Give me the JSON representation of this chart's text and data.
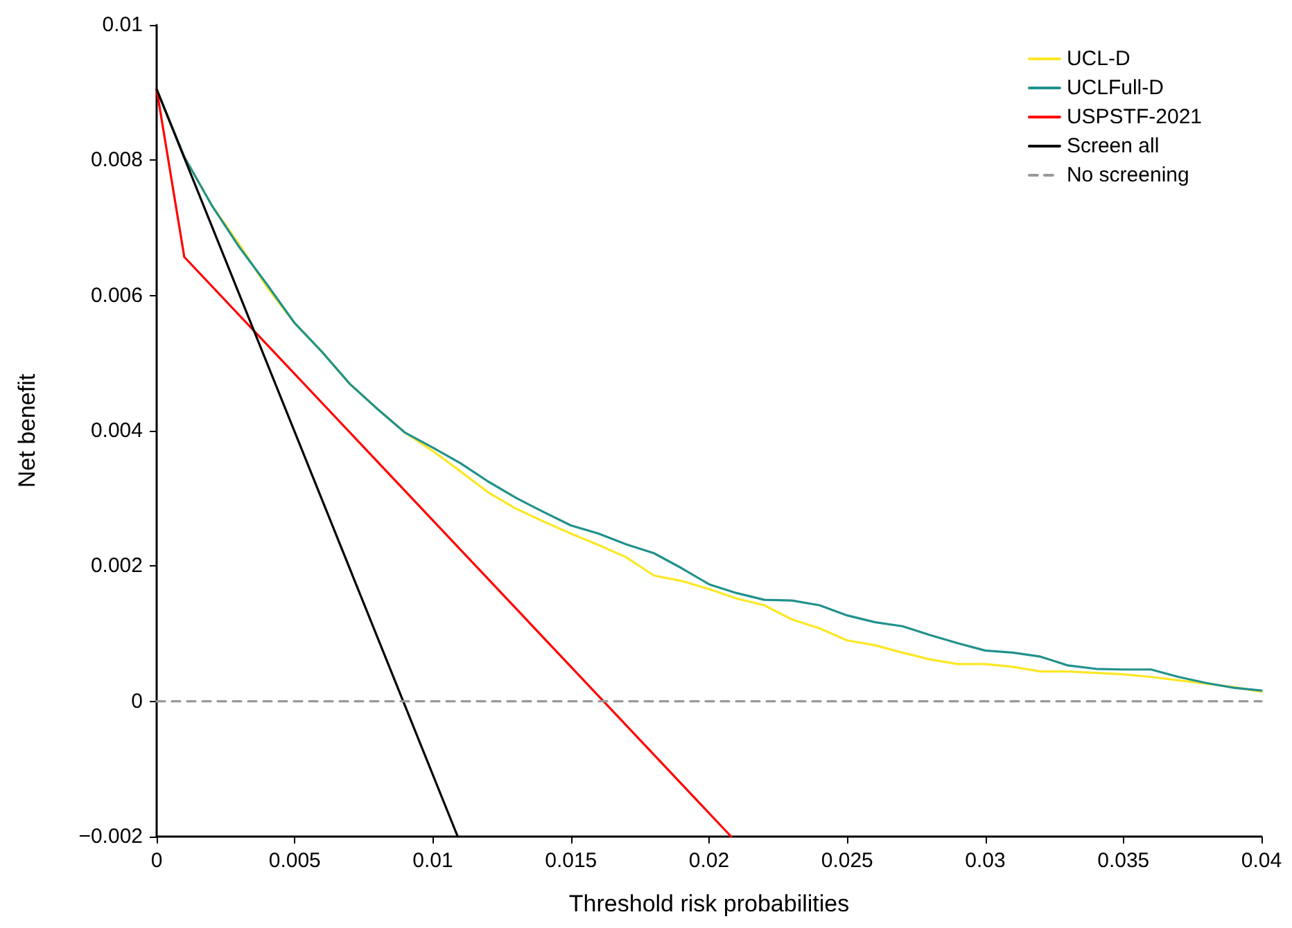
{
  "chart_data": {
    "type": "line",
    "xlabel": "Threshold risk probabilities",
    "ylabel": "Net benefit",
    "xlim": [
      0,
      0.04
    ],
    "xticks": [
      0,
      0.005,
      0.01,
      0.015,
      0.02,
      0.025,
      0.03,
      0.035,
      0.04
    ],
    "ylim": [
      -0.002,
      0.01
    ],
    "yticks": [
      {
        "value": -0.002,
        "label": "−0.002"
      },
      0,
      0.002,
      0.004,
      0.006,
      0.008,
      0.01
    ],
    "grid": false,
    "legend": "top right",
    "marker": "none",
    "series": [
      {
        "name": "UCL-D",
        "color": "#fde725",
        "x": [
          0,
          0.001,
          0.002,
          0.003,
          0.004,
          0.005,
          0.006,
          0.007,
          0.008,
          0.009,
          0.01,
          0.011,
          0.012,
          0.013,
          0.014,
          0.015,
          0.016,
          0.017,
          0.018,
          0.019,
          0.02,
          0.021,
          0.022,
          0.023,
          0.024,
          0.025,
          0.026,
          0.027,
          0.028,
          0.029,
          0.03,
          0.031,
          0.032,
          0.033,
          0.034,
          0.035,
          0.036,
          0.037,
          0.038,
          0.039,
          0.04
        ],
        "values": [
          0.00905,
          0.00805,
          0.00733,
          0.00675,
          0.00612,
          0.00559,
          0.00516,
          0.00469,
          0.00432,
          0.00397,
          0.0037,
          0.0034,
          0.00309,
          0.00285,
          0.00266,
          0.00248,
          0.00231,
          0.00213,
          0.00186,
          0.00178,
          0.00166,
          0.00152,
          0.00142,
          0.00121,
          0.00108,
          0.0009,
          0.00083,
          0.00072,
          0.00062,
          0.00055,
          0.00055,
          0.00051,
          0.00044,
          0.00044,
          0.00042,
          0.0004,
          0.00036,
          0.00031,
          0.00026,
          0.00021,
          0.00014
        ]
      },
      {
        "name": "UCLFull-D",
        "color": "#21918c",
        "x": [
          0,
          0.001,
          0.002,
          0.003,
          0.004,
          0.005,
          0.006,
          0.007,
          0.008,
          0.009,
          0.01,
          0.011,
          0.012,
          0.013,
          0.014,
          0.015,
          0.016,
          0.017,
          0.018,
          0.019,
          0.02,
          0.021,
          0.022,
          0.023,
          0.024,
          0.025,
          0.026,
          0.027,
          0.028,
          0.029,
          0.03,
          0.031,
          0.032,
          0.033,
          0.034,
          0.035,
          0.036,
          0.037,
          0.038,
          0.039,
          0.04
        ],
        "values": [
          0.00905,
          0.00805,
          0.00733,
          0.00671,
          0.00616,
          0.00559,
          0.00516,
          0.00469,
          0.00432,
          0.00397,
          0.00375,
          0.00352,
          0.00325,
          0.00301,
          0.0028,
          0.0026,
          0.00248,
          0.00232,
          0.00219,
          0.00197,
          0.00173,
          0.0016,
          0.0015,
          0.00149,
          0.00142,
          0.00127,
          0.00117,
          0.00111,
          0.00098,
          0.00086,
          0.00075,
          0.00072,
          0.00066,
          0.00053,
          0.00048,
          0.00047,
          0.00047,
          0.00036,
          0.00027,
          0.0002,
          0.00016
        ]
      },
      {
        "name": "USPSTF-2021",
        "color": "#ff0000",
        "x": [
          0,
          0.001,
          0.0208
        ],
        "values": [
          0.00905,
          0.00657,
          -0.002
        ]
      },
      {
        "name": "Screen all",
        "color": "#000000",
        "x": [
          0,
          0.0109
        ],
        "values": [
          0.00905,
          -0.002
        ]
      },
      {
        "name": "No screening",
        "color": "#999999",
        "line_style": "dashed",
        "x": [
          0,
          0.04
        ],
        "values": [
          0,
          0
        ]
      }
    ]
  }
}
